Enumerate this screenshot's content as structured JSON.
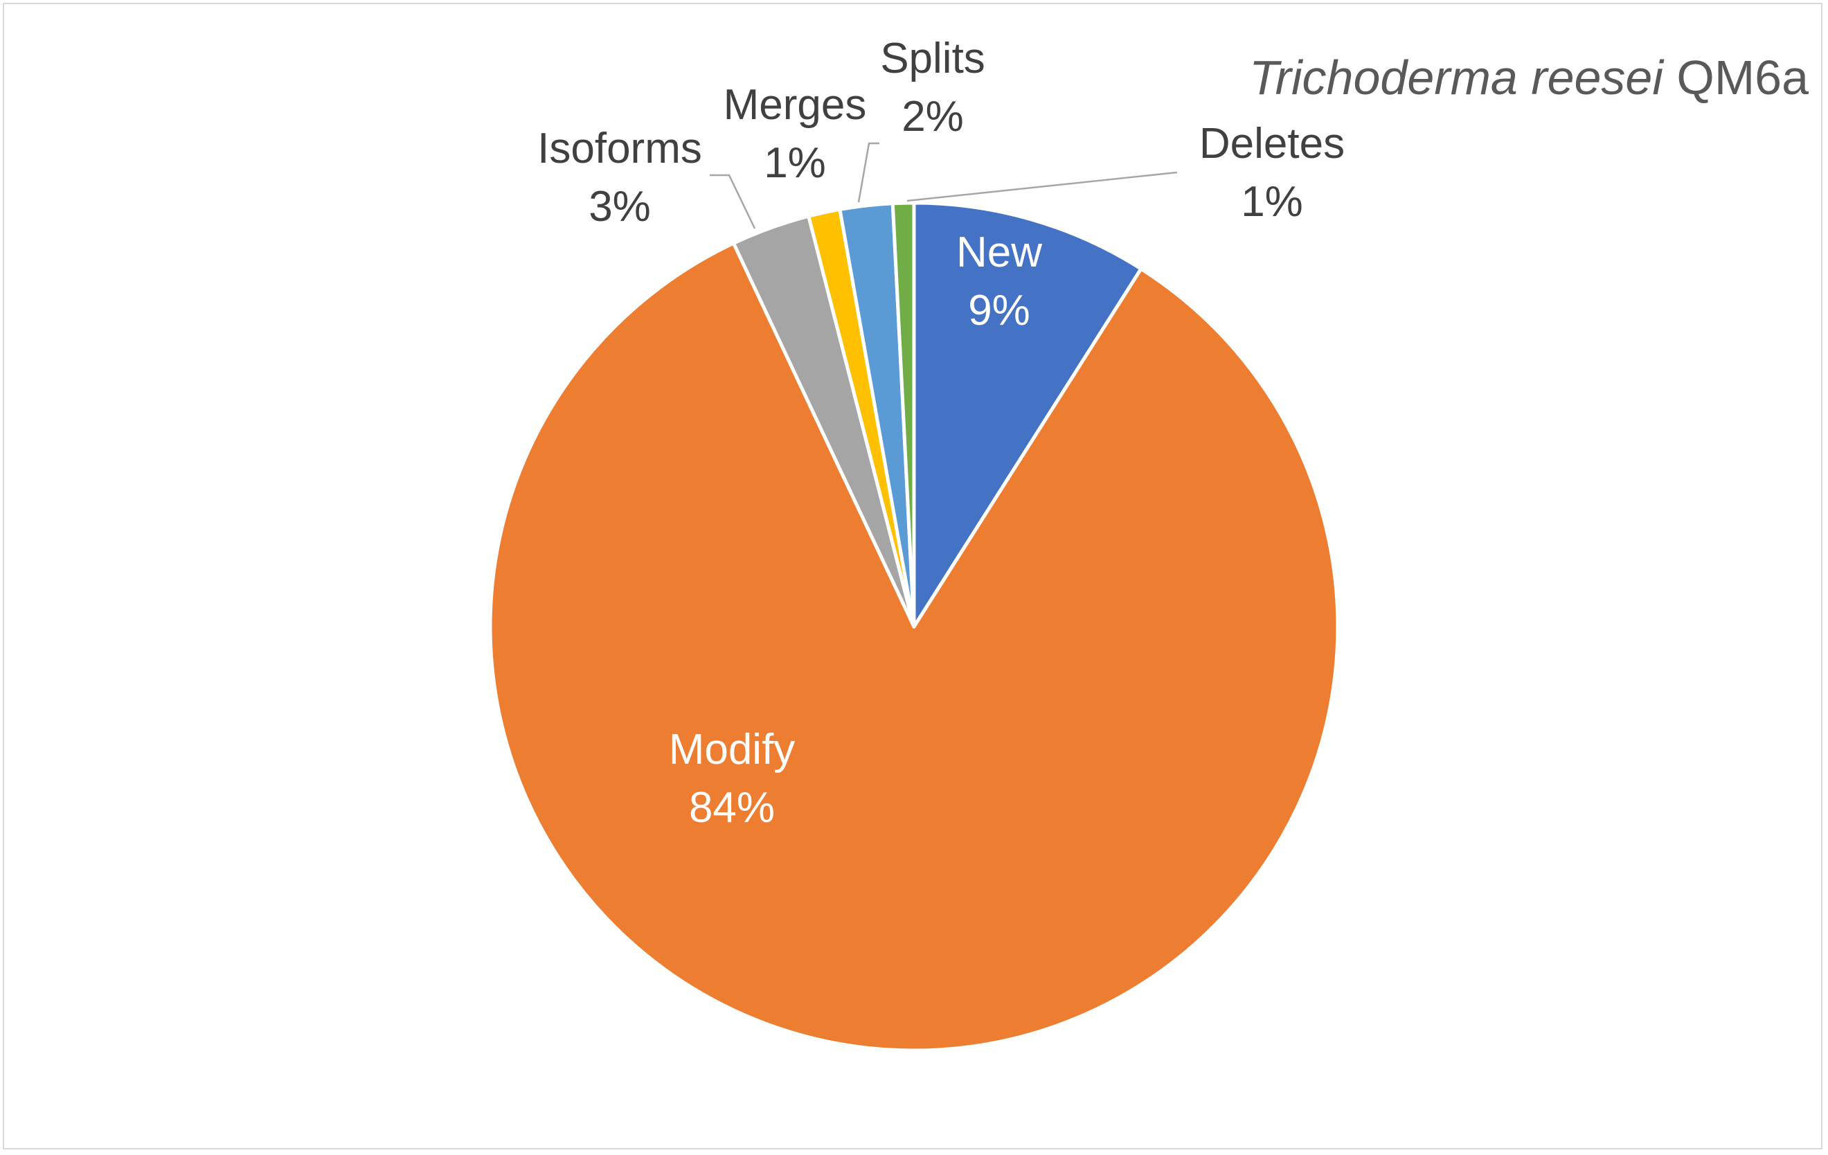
{
  "chart_data": {
    "type": "pie",
    "title": "Trichoderma reesei",
    "title_strain": "QM6a",
    "slices": [
      {
        "label": "New",
        "value": 9,
        "pct_label": "9%",
        "color": "#4472C4",
        "label_color": "#ffffff"
      },
      {
        "label": "Modify",
        "value": 84,
        "pct_label": "84%",
        "color": "#ED7D31",
        "label_color": "#ffffff"
      },
      {
        "label": "Isoforms",
        "value": 3,
        "pct_label": "3%",
        "color": "#A5A5A5",
        "label_color": "#404040"
      },
      {
        "label": "Merges",
        "value": 1.2,
        "pct_label": "1%",
        "color": "#FFC000",
        "label_color": "#404040"
      },
      {
        "label": "Splits",
        "value": 2,
        "pct_label": "2%",
        "color": "#5B9BD5",
        "label_color": "#404040"
      },
      {
        "label": "Deletes",
        "value": 0.8,
        "pct_label": "1%",
        "color": "#70AD47",
        "label_color": "#404040"
      }
    ],
    "start_angle_deg": 0,
    "direction": "clockwise",
    "legend": "none"
  }
}
